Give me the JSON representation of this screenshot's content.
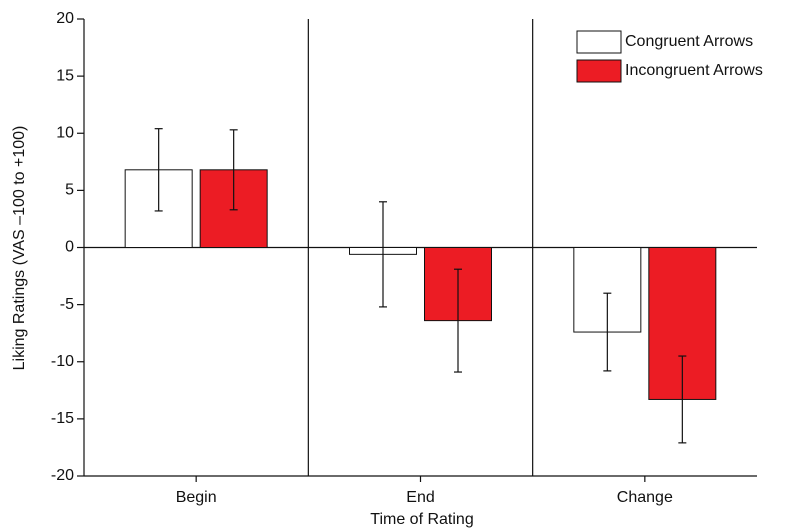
{
  "chart_data": {
    "type": "bar",
    "x_label": "Time of Rating",
    "y_label": "Liking Ratings (VAS –100 to +100)",
    "categories": [
      "Begin",
      "End",
      "Change"
    ],
    "series": [
      {
        "name": "Congruent Arrows",
        "color": "#ffffff",
        "values": [
          6.8,
          -0.6,
          -7.4
        ],
        "errors": [
          3.6,
          4.6,
          3.4
        ]
      },
      {
        "name": "Incongruent Arrows",
        "color": "#ec1c24",
        "values": [
          6.8,
          -6.4,
          -13.3
        ],
        "errors": [
          3.5,
          4.5,
          3.8
        ]
      }
    ],
    "ylim": [
      -20,
      20
    ],
    "yticks": [
      -20,
      -15,
      -10,
      -5,
      0,
      5,
      10,
      15,
      20
    ],
    "legend": "upper-right"
  }
}
